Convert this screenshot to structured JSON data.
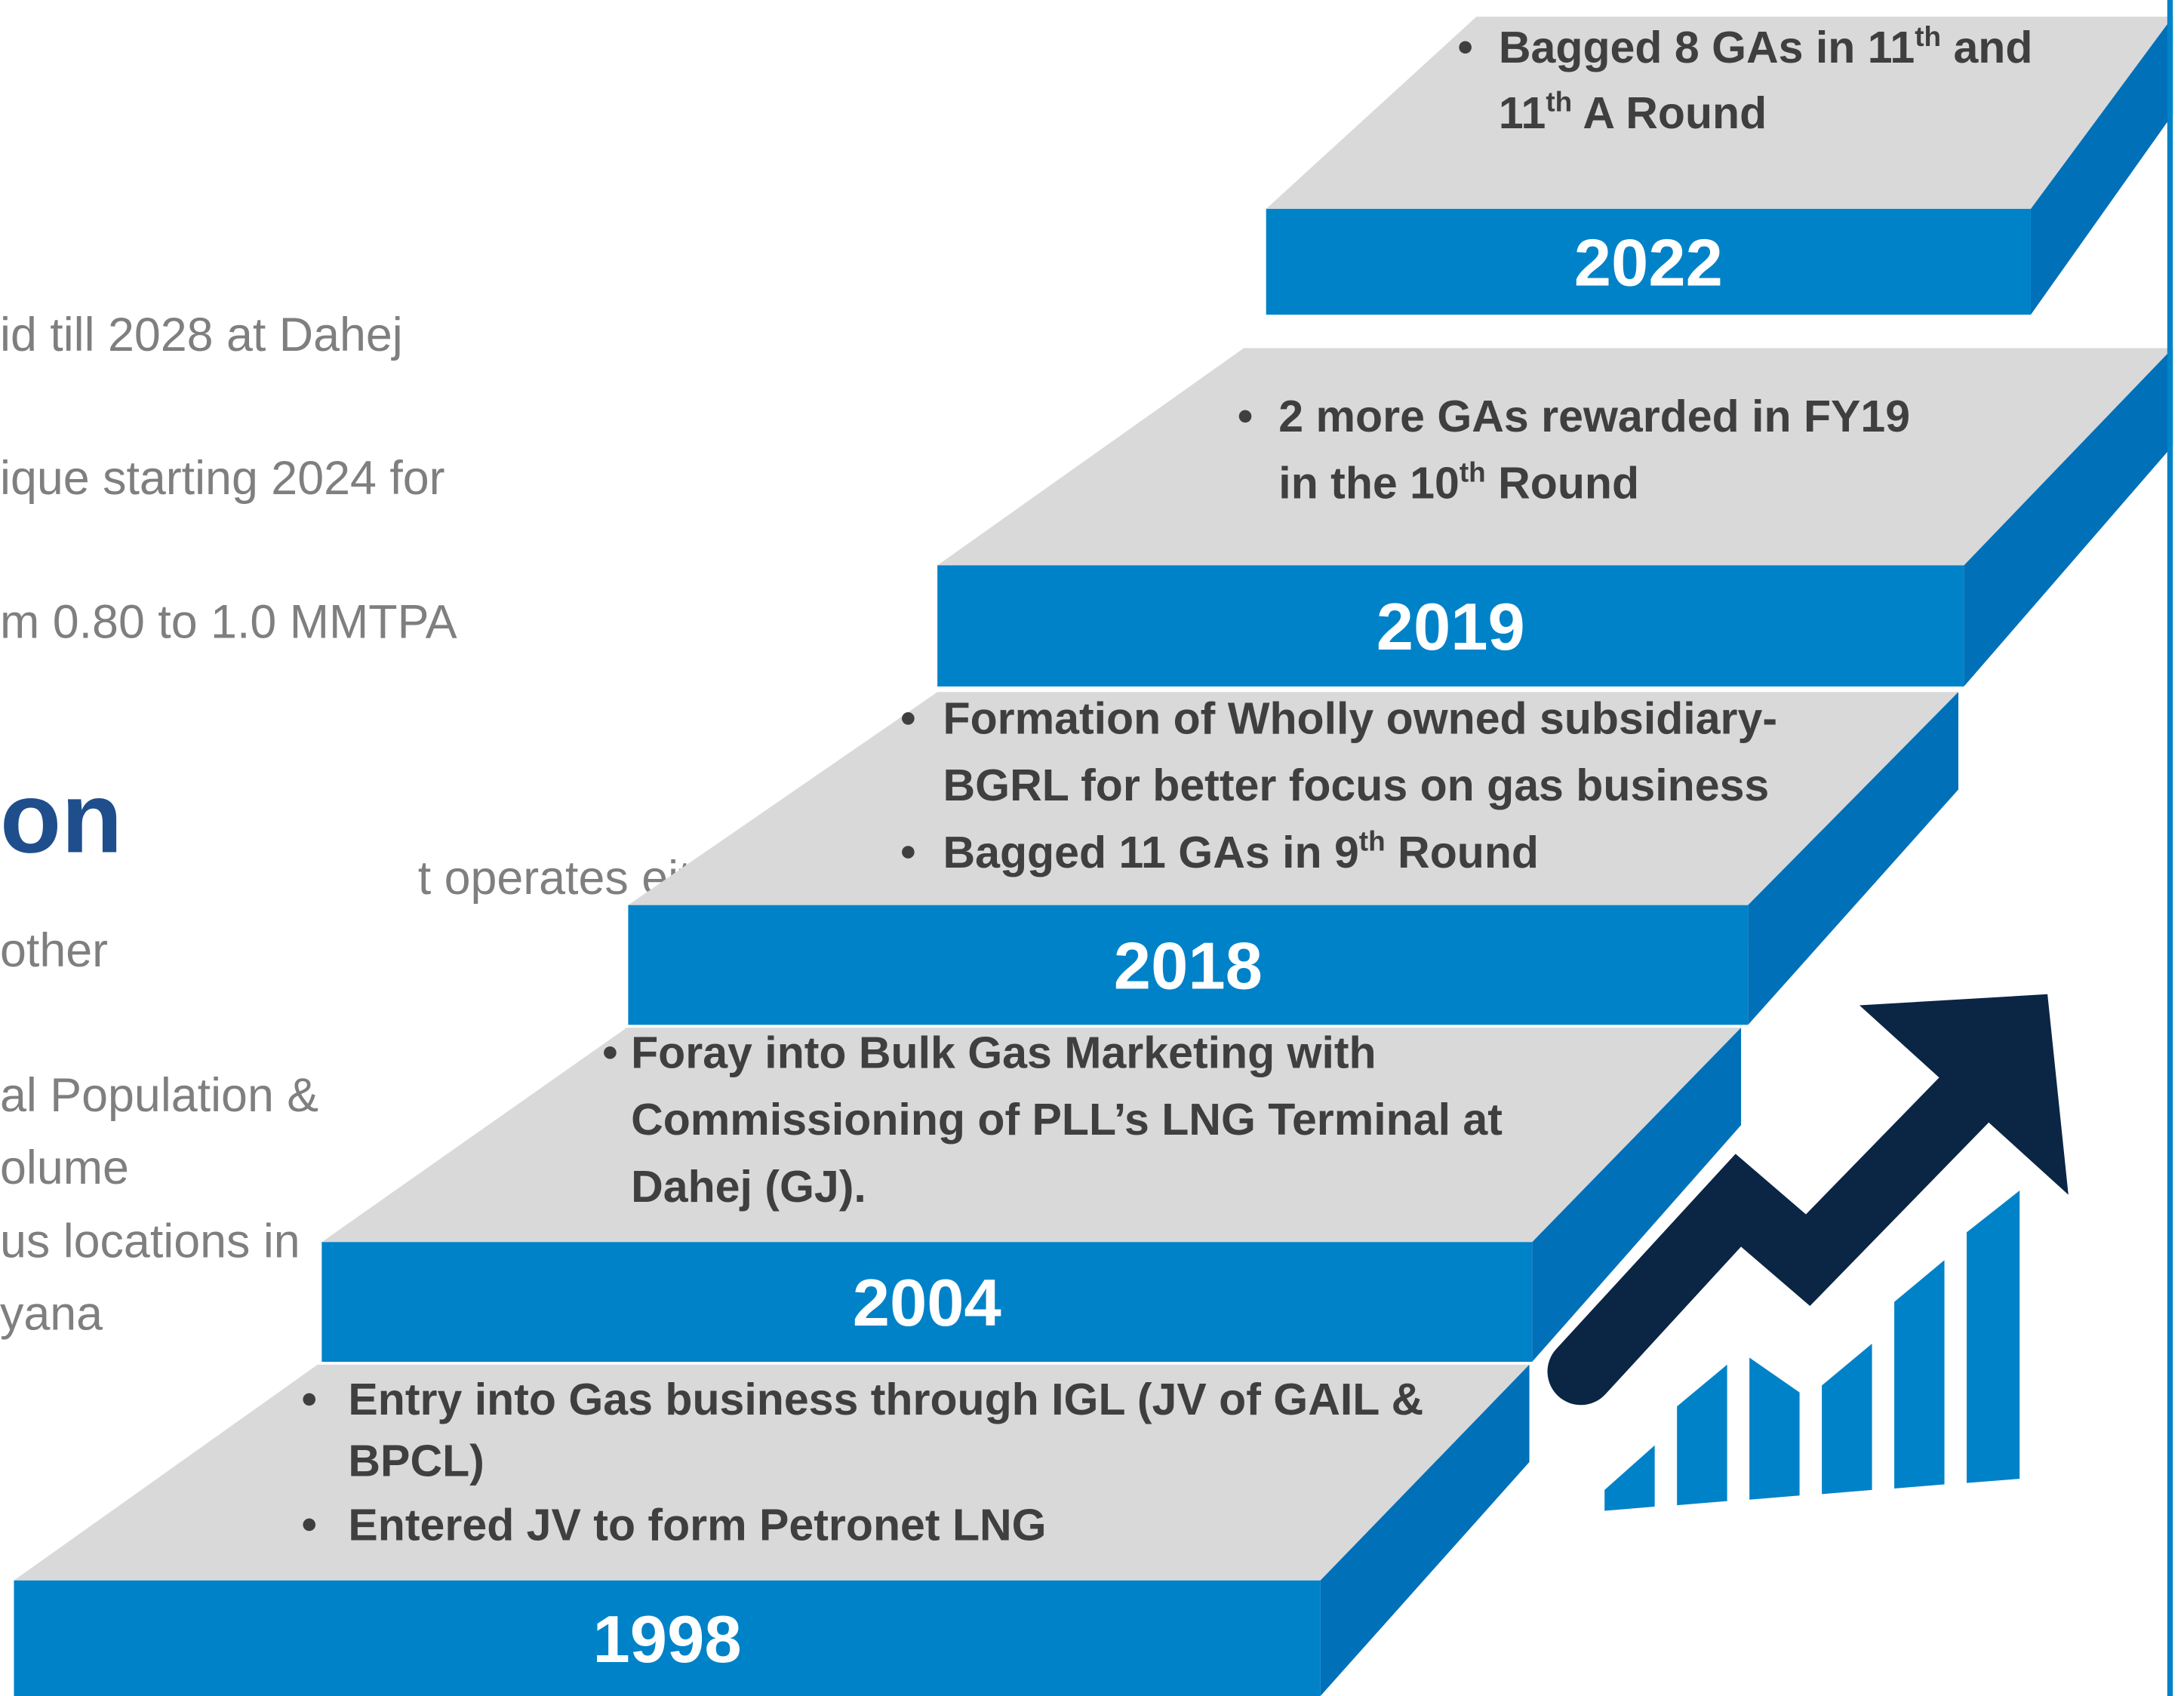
{
  "left_text": {
    "lines": [
      "id till 2028 at Dahej",
      "ique starting 2024 for",
      "m 0.80 to 1.0 MMTPA",
      "t operates either",
      " other",
      "al Population &",
      "olume",
      "us locations in",
      "yana"
    ],
    "heading": "on"
  },
  "steps": [
    {
      "year": "1998",
      "bullets": [
        {
          "lines": [
            [
              "Entry into Gas business through IGL (JV of GAIL &"
            ],
            [
              "BPCL)"
            ]
          ]
        },
        {
          "lines": [
            [
              "Entered JV to form Petronet LNG"
            ]
          ]
        }
      ]
    },
    {
      "year": "2004",
      "bullets": [
        {
          "lines": [
            [
              "Foray into Bulk Gas Marketing with"
            ],
            [
              "Commissioning of PLL’s LNG Terminal at"
            ],
            [
              "Dahej (GJ)."
            ]
          ]
        }
      ]
    },
    {
      "year": "2018",
      "bullets": [
        {
          "lines": [
            [
              "Formation of Wholly owned subsidiary-"
            ],
            [
              "BGRL for better focus on gas business"
            ]
          ]
        },
        {
          "lines": [
            [
              "Bagged 11 GAs in 9",
              {
                "sup": "th"
              },
              " Round"
            ]
          ]
        }
      ]
    },
    {
      "year": "2019",
      "bullets": [
        {
          "lines": [
            [
              "2 more GAs rewarded in FY19"
            ],
            [
              "in the 10",
              {
                "sup": "th"
              },
              " Round"
            ]
          ]
        }
      ]
    },
    {
      "year": "2022",
      "bullets": [
        {
          "lines": [
            [
              "Bagged 8 GAs in 11",
              {
                "sup": "th"
              },
              " and"
            ],
            [
              "11",
              {
                "sup": "th"
              },
              " A Round"
            ]
          ]
        }
      ]
    }
  ]
}
